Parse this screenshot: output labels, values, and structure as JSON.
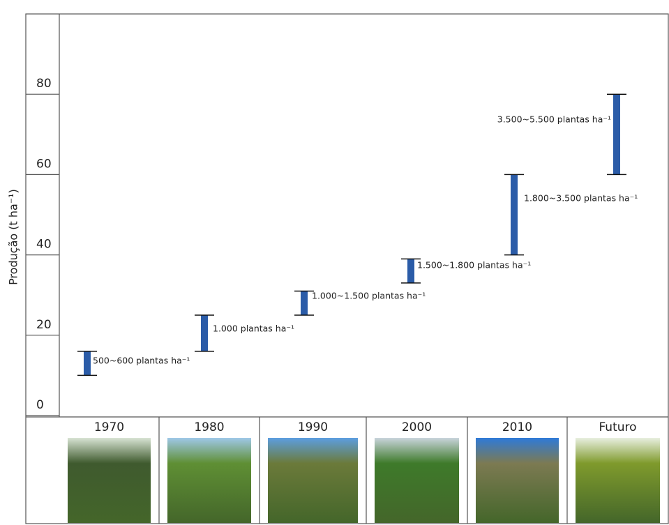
{
  "chart_data": {
    "type": "range",
    "ylabel": "Produção (t ha⁻¹)",
    "categories": [
      "1970",
      "1980",
      "1990",
      "2000",
      "2010",
      "Futuro"
    ],
    "series": [
      {
        "color": "#2b5ca8",
        "low": [
          10,
          16,
          25,
          33,
          40,
          60
        ],
        "high": [
          16,
          25,
          31,
          39,
          60,
          80
        ],
        "labels": [
          "500~600 plantas ha⁻¹",
          "1.000 plantas ha⁻¹",
          "1.000~1.500 plantas ha⁻¹",
          "1.500~1.800 plantas ha⁻¹",
          "1.800~3.500 plantas ha⁻¹",
          "3.500~5.500 plantas ha⁻¹"
        ]
      }
    ],
    "ylim": [
      0,
      100
    ],
    "yticks": [
      0,
      20,
      40,
      60,
      80
    ]
  }
}
